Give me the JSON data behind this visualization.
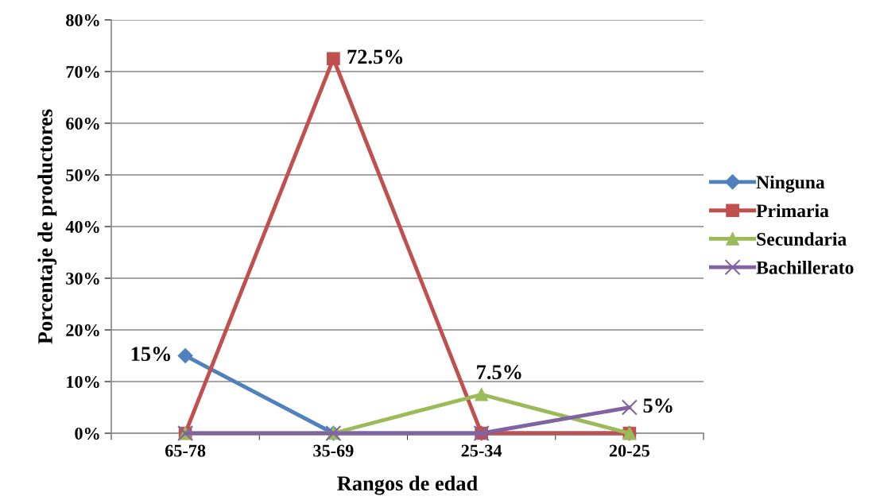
{
  "chart_data": {
    "type": "line",
    "xlabel": "Rangos de edad",
    "ylabel": "Porcentaje de productores",
    "categories": [
      "65-78",
      "35-69",
      "25-34",
      "20-25"
    ],
    "series": [
      {
        "name": "Ninguna",
        "color": "#4f81bd",
        "marker": "diamond",
        "values": [
          15,
          0,
          0,
          0
        ],
        "value_labels": [
          "15%",
          null,
          null,
          null
        ]
      },
      {
        "name": "Primaria",
        "color": "#c0504d",
        "marker": "square",
        "values": [
          0,
          72.5,
          0,
          0
        ],
        "value_labels": [
          null,
          "72.5%",
          null,
          null
        ]
      },
      {
        "name": "Secundaria",
        "color": "#9bbb59",
        "marker": "triangle",
        "values": [
          0,
          0,
          7.5,
          0
        ],
        "value_labels": [
          null,
          null,
          "7.5%",
          null
        ]
      },
      {
        "name": "Bachillerato",
        "color": "#8064a2",
        "marker": "cross",
        "values": [
          0,
          0,
          0,
          5
        ],
        "value_labels": [
          null,
          null,
          null,
          "5%"
        ]
      }
    ],
    "ylim": [
      0,
      80
    ],
    "yticks": [
      {
        "value": 0,
        "label": "0%"
      },
      {
        "value": 10,
        "label": "10%"
      },
      {
        "value": 20,
        "label": "20%"
      },
      {
        "value": 30,
        "label": "30%"
      },
      {
        "value": 40,
        "label": "40%"
      },
      {
        "value": 50,
        "label": "50%"
      },
      {
        "value": 60,
        "label": "60%"
      },
      {
        "value": 70,
        "label": "70%"
      },
      {
        "value": 80,
        "label": "80%"
      }
    ],
    "grid": "y",
    "legend": "right",
    "line_style": "solid"
  }
}
